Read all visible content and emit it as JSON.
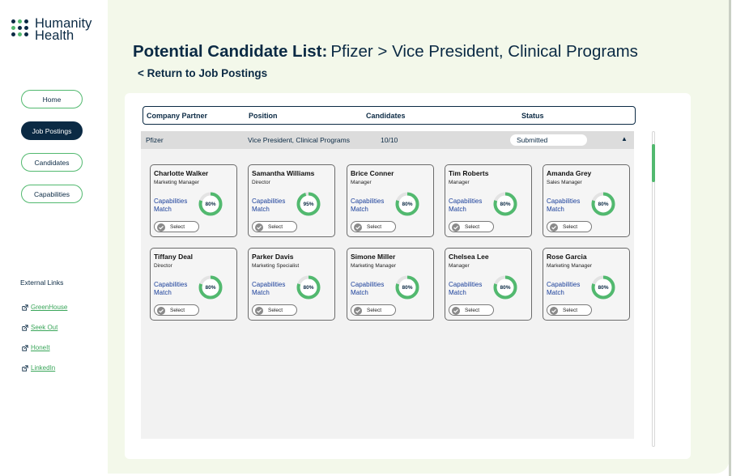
{
  "brand": {
    "name_line1": "Humanity",
    "name_line2": "Health",
    "dot_colors": [
      "#0b2a44",
      "#52b96f",
      "#0b2a44",
      "#52b96f",
      "#0b2a44",
      "#0b2a44",
      "#0b2a44",
      "#52b96f",
      "#0b2a44"
    ]
  },
  "nav": {
    "home": "Home",
    "job_postings": "Job Postings",
    "candidates": "Candidates",
    "capabilities": "Capabilities"
  },
  "external": {
    "title": "External Links",
    "links": [
      "GreenHouse",
      "Seek Out",
      "HoneIt",
      "LinkedIn"
    ]
  },
  "header": {
    "title_bold": "Potential Candidate List:",
    "title_rest": "Pfizer > Vice President, Clinical Programs",
    "return_link": "< Return to Job Postings"
  },
  "table": {
    "columns": {
      "company": "Company Partner",
      "position": "Position",
      "candidates": "Candidates",
      "status": "Status"
    },
    "row": {
      "company": "Pfizer",
      "position": "Vice President, Clinical Programs",
      "candidates": "10/10",
      "status": "Submitted",
      "collapse_glyph": "▲"
    }
  },
  "labels": {
    "cap_line1": "Capabilities",
    "cap_line2": "Match",
    "select": "Select"
  },
  "colors": {
    "accent": "#52b96f",
    "navy": "#0b2a44",
    "ring_track": "#e3e3e3"
  },
  "candidates": [
    {
      "name": "Charlotte Walker",
      "role": "Marketing Manager",
      "match": "80%",
      "match_value": 0.8
    },
    {
      "name": "Samantha Williams",
      "role": "Director",
      "match": "95%",
      "match_value": 0.95
    },
    {
      "name": "Brice Conner",
      "role": "Manager",
      "match": "80%",
      "match_value": 0.8
    },
    {
      "name": "Tim Roberts",
      "role": "Manager",
      "match": "80%",
      "match_value": 0.8
    },
    {
      "name": "Amanda Grey",
      "role": "Sales Manager",
      "match": "80%",
      "match_value": 0.8
    },
    {
      "name": "Tiffany Deal",
      "role": "Director",
      "match": "80%",
      "match_value": 0.8
    },
    {
      "name": "Parker Davis",
      "role": "Marketing Specialist",
      "match": "80%",
      "match_value": 0.8
    },
    {
      "name": "Simone Miller",
      "role": "Marketing Manager",
      "match": "80%",
      "match_value": 0.8
    },
    {
      "name": "Chelsea Lee",
      "role": "Manager",
      "match": "80%",
      "match_value": 0.8
    },
    {
      "name": "Rose Garcia",
      "role": "Marketing Manager",
      "match": "80%",
      "match_value": 0.8
    }
  ]
}
